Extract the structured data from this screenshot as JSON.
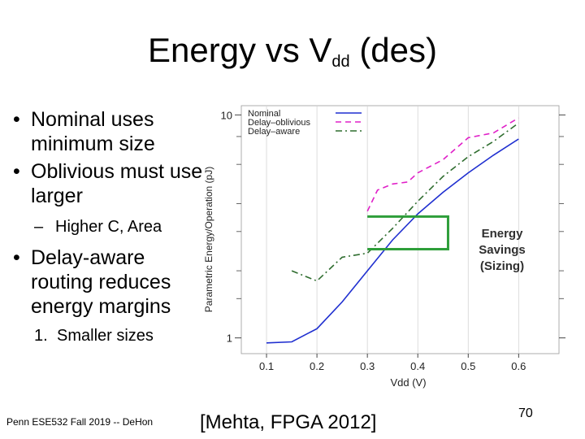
{
  "slide": {
    "title_main": "Energy vs V",
    "title_sub": "dd",
    "title_tail": " (des)",
    "bullets": [
      "Nominal uses minimum size",
      "Oblivious must use larger"
    ],
    "sub_bullet_dash": "–",
    "sub_bullet": "Higher C, Area",
    "bullet3": "Delay-aware routing reduces energy margins",
    "numbered_marker": "1.",
    "numbered_item": "Smaller sizes",
    "footer_left": "Penn ESE532 Fall 2019 -- DeHon",
    "citation": "[Mehta,  FPGA 2012]",
    "page_number": "70"
  },
  "chart_data": {
    "type": "line",
    "xlabel": "Vdd (V)",
    "ylabel": "Parametric Energy/Operation (pJ)",
    "y_scale": "log",
    "xlim": [
      0.05,
      0.68
    ],
    "ylim": [
      0.85,
      11
    ],
    "x_ticks": [
      0.1,
      0.2,
      0.3,
      0.4,
      0.5,
      0.6
    ],
    "x_tick_labels": [
      "0.1",
      "0.2",
      "0.3",
      "0.4",
      "0.5",
      "0.6"
    ],
    "y_tick_labels": [
      {
        "value": 1,
        "label": "1"
      },
      {
        "value": 10,
        "label": "10"
      }
    ],
    "legend_position": "top-left",
    "series": [
      {
        "name": "Nominal",
        "color": "#1f2fd0",
        "style": "solid",
        "x": [
          0.1,
          0.15,
          0.2,
          0.25,
          0.3,
          0.35,
          0.4,
          0.45,
          0.5,
          0.55,
          0.6
        ],
        "y": [
          0.95,
          0.96,
          1.1,
          1.45,
          2.0,
          2.75,
          3.6,
          4.5,
          5.5,
          6.6,
          7.8
        ]
      },
      {
        "name": "Delay–oblivious",
        "color": "#e020c8",
        "style": "dashed",
        "x": [
          0.3,
          0.32,
          0.35,
          0.38,
          0.4,
          0.45,
          0.5,
          0.55,
          0.6
        ],
        "y": [
          3.7,
          4.6,
          4.9,
          5.0,
          5.5,
          6.3,
          7.9,
          8.3,
          9.7
        ]
      },
      {
        "name": "Delay–aware",
        "color": "#2f6d2f",
        "style": "dashdot",
        "x": [
          0.15,
          0.2,
          0.25,
          0.3,
          0.35,
          0.4,
          0.45,
          0.5,
          0.55,
          0.6
        ],
        "y": [
          2.0,
          1.8,
          2.3,
          2.4,
          3.1,
          4.1,
          5.3,
          6.5,
          7.6,
          9.2
        ]
      }
    ],
    "annotation": {
      "label_lines": [
        "Energy",
        "Savings",
        "(Sizing)"
      ],
      "color": "#2e9e3a",
      "bracket_x": [
        0.3,
        0.46
      ],
      "bracket_y": [
        2.5,
        3.5
      ]
    }
  }
}
